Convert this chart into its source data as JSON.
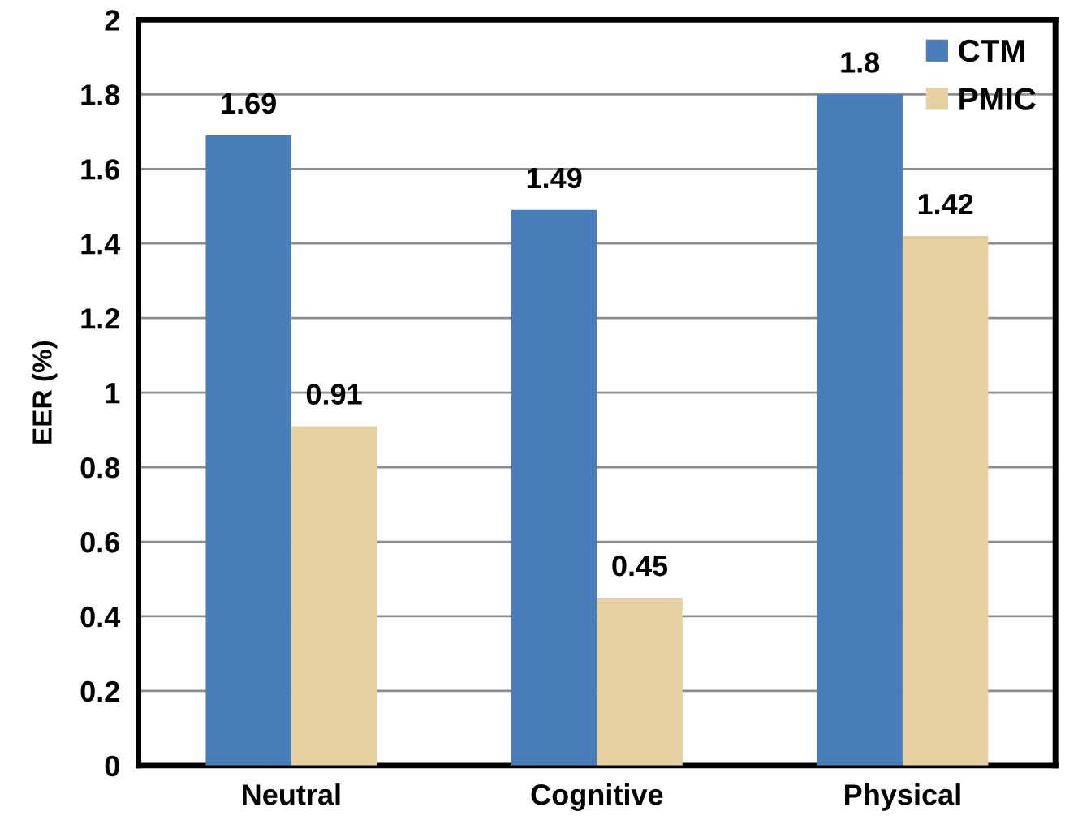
{
  "chart_data": {
    "type": "bar",
    "ylabel": "EER (%)",
    "categories": [
      "Neutral",
      "Cognitive",
      "Physical"
    ],
    "series": [
      {
        "name": "CTM",
        "color": "#4a7ebb",
        "values": [
          1.69,
          1.49,
          1.8
        ]
      },
      {
        "name": "PMIC",
        "color": "#e6d1a2",
        "values": [
          0.91,
          0.45,
          1.42
        ]
      }
    ],
    "ylim": [
      0,
      2
    ],
    "yticks": [
      0,
      0.2,
      0.4,
      0.6,
      0.8,
      1,
      1.2,
      1.4,
      1.6,
      1.8,
      2
    ],
    "grid": "y",
    "legend": "top right",
    "data_labels": true
  }
}
